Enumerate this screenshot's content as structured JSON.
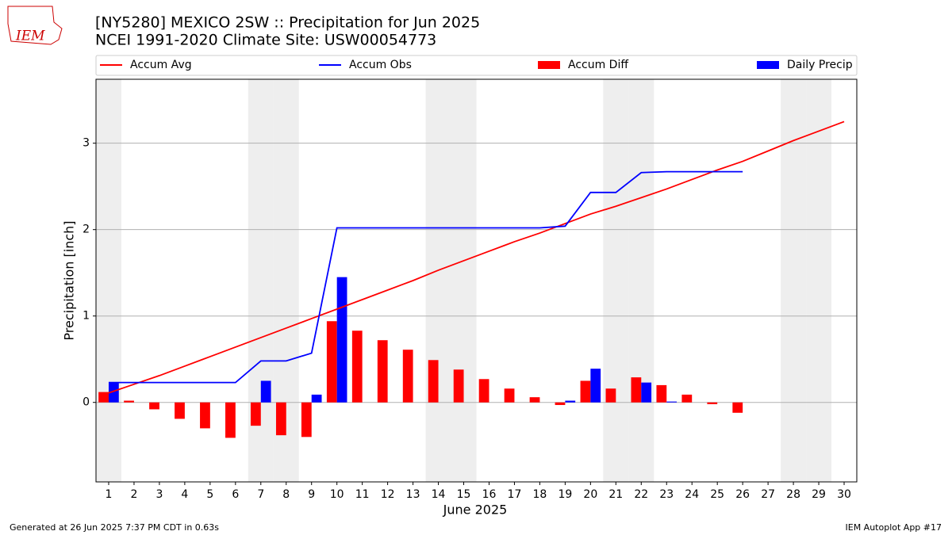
{
  "logo_text": "IEM",
  "chart_data": {
    "type": "bar",
    "title": "[NY5280] MEXICO 2SW :: Precipitation for Jun 2025",
    "subtitle": "NCEI 1991-2020 Climate Site: USW00054773",
    "x_label": "June 2025",
    "y_label": "Precipitation [inch]",
    "x": [
      1,
      2,
      3,
      4,
      5,
      6,
      7,
      8,
      9,
      10,
      11,
      12,
      13,
      14,
      15,
      16,
      17,
      18,
      19,
      20,
      21,
      22,
      23,
      24,
      25,
      26,
      27,
      28,
      29,
      30
    ],
    "xlim": [
      0.5,
      30.5
    ],
    "xticks": [
      1,
      2,
      3,
      4,
      5,
      6,
      7,
      8,
      9,
      10,
      11,
      12,
      13,
      14,
      15,
      16,
      17,
      18,
      19,
      20,
      21,
      22,
      23,
      24,
      25,
      26,
      27,
      28,
      29,
      30
    ],
    "ylim": [
      -0.92,
      3.74
    ],
    "yticks": [
      0,
      1,
      2,
      3
    ],
    "grid": true,
    "legend": "top",
    "shaded_days": [
      1,
      7,
      8,
      14,
      15,
      21,
      22,
      28,
      29
    ],
    "series": [
      {
        "name": "Accum Avg",
        "type": "line",
        "color": "#ff0000",
        "values": [
          0.11,
          0.21,
          0.31,
          0.42,
          0.53,
          0.64,
          0.75,
          0.86,
          0.97,
          1.08,
          1.19,
          1.3,
          1.41,
          1.53,
          1.64,
          1.75,
          1.86,
          1.96,
          2.07,
          2.18,
          2.27,
          2.37,
          2.47,
          2.58,
          2.69,
          2.79,
          2.91,
          3.03,
          3.14,
          3.25
        ]
      },
      {
        "name": "Accum Obs",
        "type": "line",
        "color": "#0000ff",
        "values": [
          0.23,
          0.23,
          0.23,
          0.23,
          0.23,
          0.23,
          0.48,
          0.48,
          0.57,
          2.02,
          2.02,
          2.02,
          2.02,
          2.02,
          2.02,
          2.02,
          2.02,
          2.02,
          2.04,
          2.43,
          2.43,
          2.66,
          2.67,
          2.67,
          2.67,
          2.67,
          null,
          null,
          null,
          null
        ]
      },
      {
        "name": "Accum Diff",
        "type": "bar",
        "color": "#ff0000",
        "values": [
          0.12,
          0.02,
          -0.08,
          -0.19,
          -0.3,
          -0.41,
          -0.27,
          -0.38,
          -0.4,
          0.94,
          0.83,
          0.72,
          0.61,
          0.49,
          0.38,
          0.27,
          0.16,
          0.06,
          -0.03,
          0.25,
          0.16,
          0.29,
          0.2,
          0.09,
          -0.02,
          -0.12,
          null,
          null,
          null,
          null
        ]
      },
      {
        "name": "Daily Precip",
        "type": "bar",
        "color": "#0000ff",
        "values": [
          0.23,
          0,
          0,
          0,
          0,
          0,
          0.25,
          0,
          0.09,
          1.45,
          0,
          0,
          0,
          0,
          0,
          0,
          0,
          0,
          0.02,
          0.39,
          0,
          0.23,
          0.01,
          0,
          0,
          0,
          null,
          null,
          null,
          null
        ]
      }
    ]
  },
  "footer_left": "Generated at 26 Jun 2025 7:37 PM CDT in 0.63s",
  "footer_right": "IEM Autoplot App #17"
}
